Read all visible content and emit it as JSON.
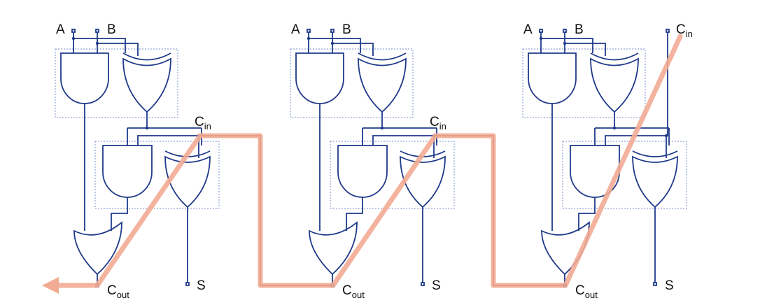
{
  "adders": [
    {
      "input_a": "A",
      "input_b": "B",
      "carry_in": "C",
      "carry_in_sub": "in",
      "carry_out": "C",
      "carry_out_sub": "out",
      "sum": "S"
    },
    {
      "input_a": "A",
      "input_b": "B",
      "carry_in": "C",
      "carry_in_sub": "in",
      "carry_out": "C",
      "carry_out_sub": "out",
      "sum": "S"
    },
    {
      "input_a": "A",
      "input_b": "B",
      "carry_in": "C",
      "carry_in_sub": "in",
      "carry_out": "C",
      "carry_out_sub": "out",
      "sum": "S"
    }
  ],
  "colors": {
    "wire": "#1f3a8a",
    "box": "#7a8fd0",
    "carry_highlight": "#f2ab93",
    "carry_wire": "#6b2a1a"
  }
}
